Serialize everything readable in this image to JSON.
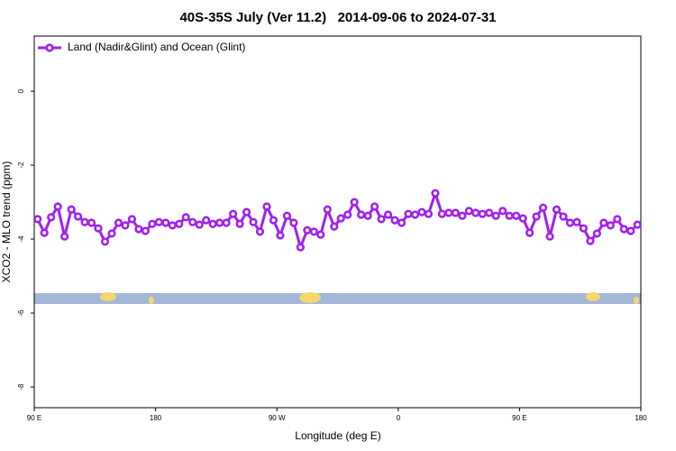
{
  "chart_data": {
    "type": "line",
    "title": "40S-35S July (Ver 11.2)   2014-09-06 to 2024-07-31",
    "xlabel": "Longitude (deg E)",
    "ylabel": "XCO2 - MLO trend (ppm)",
    "xlim": [
      90,
      540
    ],
    "ylim": [
      -8.56,
      1.49
    ],
    "xticks": [
      {
        "value": 90,
        "label": "90 E"
      },
      {
        "value": 180,
        "label": "180"
      },
      {
        "value": 270,
        "label": "90 W"
      },
      {
        "value": 360,
        "label": "0"
      },
      {
        "value": 450,
        "label": "90 E"
      },
      {
        "value": 540,
        "label": "180"
      }
    ],
    "yticks": [
      0,
      -2,
      -4,
      -6,
      -8
    ],
    "grid": false,
    "legend": "top-left",
    "x": [
      92.5,
      97.5,
      102.5,
      107.5,
      112.5,
      117.5,
      122.5,
      127.5,
      132.5,
      137.5,
      142.5,
      147.5,
      152.5,
      157.5,
      162.5,
      167.5,
      172.5,
      177.5,
      182.5,
      187.5,
      192.5,
      197.5,
      202.5,
      207.5,
      212.5,
      217.5,
      222.5,
      227.5,
      232.5,
      237.5,
      242.5,
      247.5,
      252.5,
      257.5,
      262.5,
      267.5,
      272.5,
      277.5,
      282.5,
      287.5,
      292.5,
      297.5,
      302.5,
      307.5,
      312.5,
      317.5,
      322.5,
      327.5,
      332.5,
      337.5,
      342.5,
      347.5,
      352.5,
      357.5,
      362.5,
      367.5,
      372.5,
      377.5,
      382.5,
      387.5,
      392.5,
      397.5,
      402.5,
      407.5,
      412.5,
      417.5,
      422.5,
      427.5,
      432.5,
      437.5,
      442.5,
      447.5,
      452.5,
      457.5,
      462.5,
      467.5,
      472.5,
      477.5,
      482.5,
      487.5,
      492.5,
      497.5,
      502.5,
      507.5,
      512.5,
      517.5,
      522.5,
      527.5,
      532.5,
      537.5
    ],
    "series": [
      {
        "name": "Land (Nadir&Glint) and Ocean (Glint)",
        "color": "#a020f0",
        "values": [
          -3.46,
          -3.83,
          -3.41,
          -3.12,
          -3.93,
          -3.2,
          -3.39,
          -3.54,
          -3.56,
          -3.71,
          -4.07,
          -3.85,
          -3.56,
          -3.63,
          -3.46,
          -3.73,
          -3.78,
          -3.59,
          -3.54,
          -3.56,
          -3.63,
          -3.59,
          -3.41,
          -3.54,
          -3.61,
          -3.49,
          -3.59,
          -3.56,
          -3.56,
          -3.32,
          -3.59,
          -3.27,
          -3.54,
          -3.8,
          -3.12,
          -3.49,
          -3.9,
          -3.37,
          -3.56,
          -4.22,
          -3.76,
          -3.8,
          -3.88,
          -3.2,
          -3.66,
          -3.44,
          -3.34,
          -3.0,
          -3.34,
          -3.37,
          -3.12,
          -3.46,
          -3.34,
          -3.49,
          -3.56,
          -3.32,
          -3.34,
          -3.27,
          -3.32,
          -2.76,
          -3.32,
          -3.29,
          -3.29,
          -3.37,
          -3.24,
          -3.29,
          -3.32,
          -3.29,
          -3.37,
          -3.24,
          -3.37,
          -3.37,
          -3.44,
          -3.83,
          -3.39,
          -3.15,
          -3.93,
          -3.2,
          -3.39,
          -3.56,
          -3.54,
          -3.71,
          -4.05,
          -3.85,
          -3.56,
          -3.63,
          -3.46,
          -3.73,
          -3.78,
          -3.61
        ]
      }
    ]
  }
}
